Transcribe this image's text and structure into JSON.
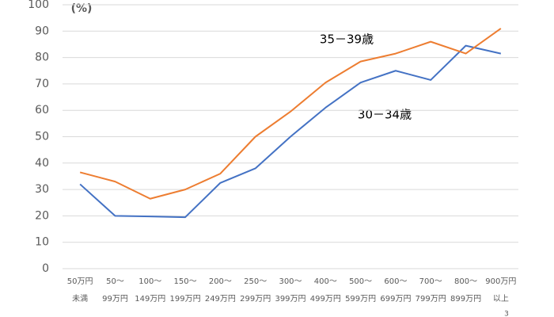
{
  "chart_data": {
    "type": "line",
    "y_unit_label": "(%)",
    "categories": [
      [
        "50万円",
        "未満"
      ],
      [
        "50〜",
        "99万円"
      ],
      [
        "100〜",
        "149万円"
      ],
      [
        "150〜",
        "199万円"
      ],
      [
        "200〜",
        "249万円"
      ],
      [
        "250〜",
        "299万円"
      ],
      [
        "300〜",
        "399万円"
      ],
      [
        "400〜",
        "499万円"
      ],
      [
        "500〜",
        "599万円"
      ],
      [
        "600〜",
        "699万円"
      ],
      [
        "700〜",
        "799万円"
      ],
      [
        "800〜",
        "899万円"
      ],
      [
        "900万円",
        "以上"
      ]
    ],
    "series": [
      {
        "name": "30－34歳",
        "color": "#4472c4",
        "values": [
          32,
          20,
          19.8,
          19.5,
          32.5,
          38,
          50,
          61,
          70.5,
          75,
          71.5,
          84.5,
          81.5
        ]
      },
      {
        "name": "35－39歳",
        "color": "#ed7d31",
        "values": [
          36.5,
          33,
          26.5,
          30,
          36,
          50,
          59.5,
          70.5,
          78.5,
          81.5,
          86,
          81.5,
          91
        ]
      }
    ],
    "ylim": [
      0,
      100
    ],
    "yticks": [
      0,
      10,
      20,
      30,
      40,
      50,
      60,
      70,
      80,
      90,
      100
    ],
    "grid": true,
    "page_number": "3"
  }
}
